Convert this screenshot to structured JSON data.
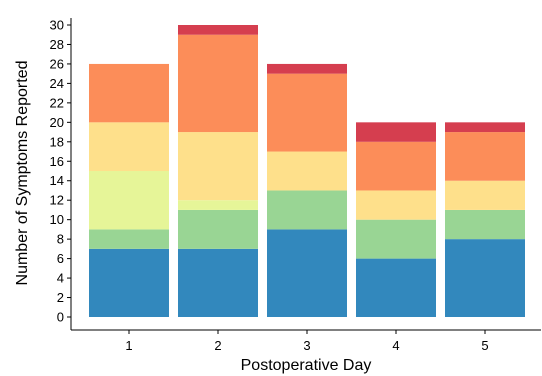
{
  "chart_data": {
    "type": "bar",
    "stacked": true,
    "title": "",
    "xlabel": "Postoperative Day",
    "ylabel": "Number of Symptoms Reported",
    "categories": [
      "1",
      "2",
      "3",
      "4",
      "5"
    ],
    "ylim": [
      0,
      30
    ],
    "yticks": [
      0,
      2,
      4,
      6,
      8,
      10,
      12,
      14,
      16,
      18,
      20,
      22,
      24,
      26,
      28,
      30
    ],
    "grid": false,
    "legend": "none",
    "series": [
      {
        "color": "#3288bd",
        "values": [
          7,
          7,
          9,
          6,
          8
        ]
      },
      {
        "color": "#99d594",
        "values": [
          2,
          4,
          4,
          4,
          3
        ]
      },
      {
        "color": "#e6f598",
        "values": [
          6,
          1,
          0,
          0,
          0
        ]
      },
      {
        "color": "#fee08b",
        "values": [
          5,
          7,
          4,
          3,
          3
        ]
      },
      {
        "color": "#fc8d59",
        "values": [
          6,
          10,
          8,
          5,
          5
        ]
      },
      {
        "color": "#d53e4f",
        "values": [
          0,
          1,
          1,
          2,
          1
        ]
      }
    ]
  }
}
